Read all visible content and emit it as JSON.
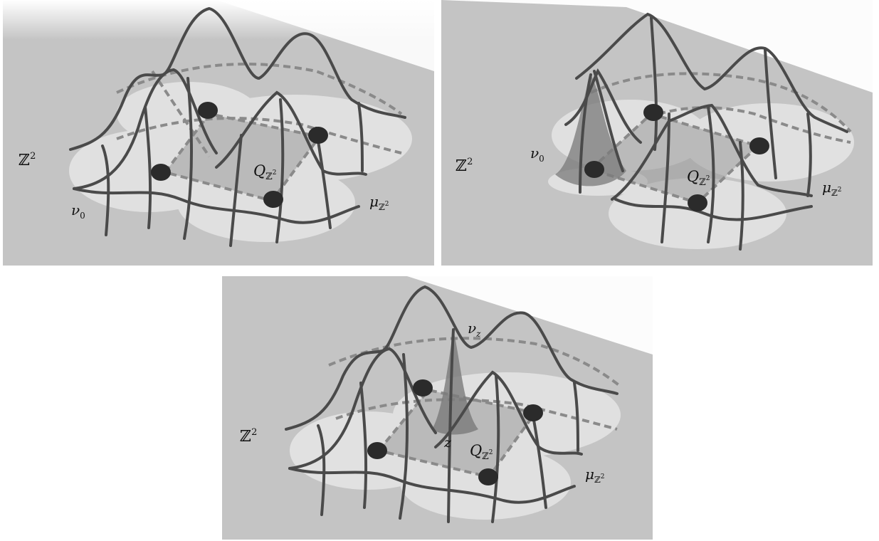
{
  "panels": [
    {
      "id": "top-left",
      "labels": {
        "lattice": "ℤ",
        "lattice_exp": "2",
        "nu": "ν",
        "nu_sub": "0",
        "q": "Q",
        "q_sub": "ℤ",
        "q_sub_exp": "2",
        "mu": "μ",
        "mu_sub": "ℤ",
        "mu_sub_exp": "2"
      }
    },
    {
      "id": "top-right",
      "labels": {
        "lattice": "ℤ",
        "lattice_exp": "2",
        "nu": "ν",
        "nu_sub": "0",
        "q": "Q",
        "q_sub": "ℤ",
        "q_sub_exp": "2",
        "mu": "μ",
        "mu_sub": "ℤ",
        "mu_sub_exp": "2"
      }
    },
    {
      "id": "bottom",
      "labels": {
        "lattice": "ℤ",
        "lattice_exp": "2",
        "nu": "ν",
        "nu_sub": "z",
        "z": "z",
        "q": "Q",
        "q_sub": "ℤ",
        "q_sub_exp": "2",
        "mu": "μ",
        "mu_sub": "ℤ",
        "mu_sub_exp": "2"
      }
    }
  ],
  "colors": {
    "background_plane": "#c4c4c4",
    "mesh_line": "#4a4a4a",
    "dashed_line": "#8a8a8a",
    "dot": "#2b2b2b",
    "square": "#9a9a9a",
    "peak": "#7a7a7a"
  }
}
